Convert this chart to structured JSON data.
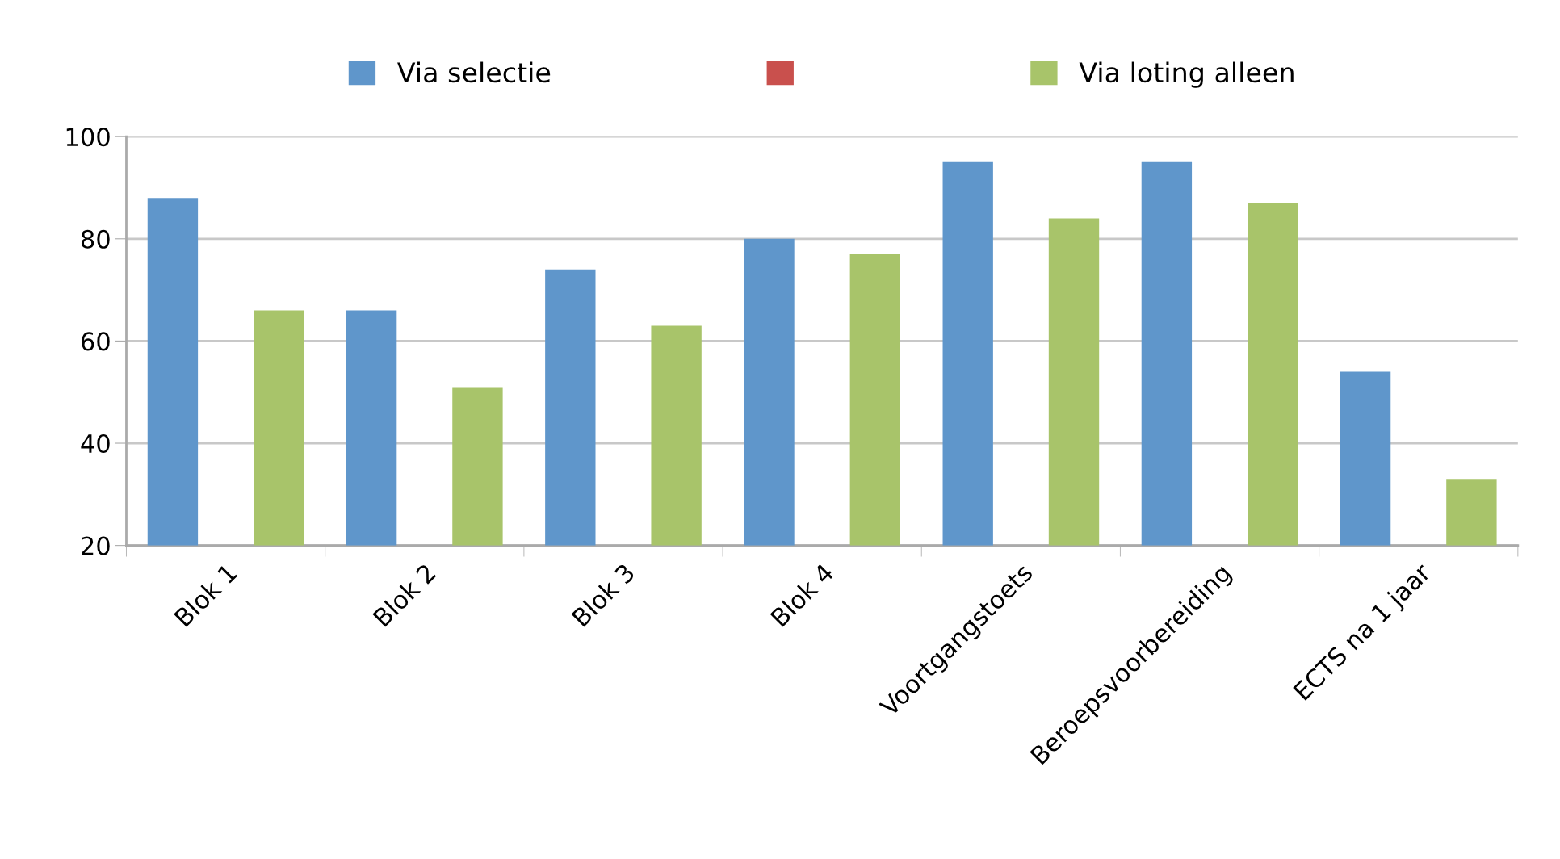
{
  "chart_data": {
    "type": "bar",
    "categories": [
      "Blok 1",
      "Blok 2",
      "Blok 3",
      "Blok 4",
      "Voortgangstoets",
      "Beroepsvoorbereiding",
      "ECTS na 1 jaar"
    ],
    "series": [
      {
        "name": "Via selectie",
        "color": "#5f96cb",
        "values": [
          88,
          66,
          74,
          80,
          95,
          95,
          54
        ]
      },
      {
        "color": "#c9504d",
        "values": [
          null,
          null,
          null,
          null,
          null,
          null,
          null
        ]
      },
      {
        "name": "Via loting alleen",
        "color": "#a8c46a",
        "values": [
          66,
          51,
          63,
          77,
          84,
          87,
          33
        ]
      }
    ],
    "ylim": [
      20,
      100
    ],
    "yticks": [
      20,
      40,
      60,
      80,
      100
    ],
    "grid": "y",
    "legend": "top"
  }
}
